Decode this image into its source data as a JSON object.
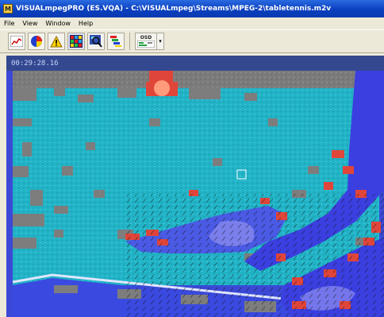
{
  "window": {
    "app_icon": "M",
    "title": "VISUALmpegPRO (ES.VQA) - C:\\VISUALmpeg\\Streams\\MPEG-2\\tabletennis.m2v"
  },
  "menu": {
    "items": [
      "File",
      "View",
      "Window",
      "Help"
    ]
  },
  "toolbar": {
    "buttons": [
      {
        "name": "line-graph-icon"
      },
      {
        "name": "pie-chart-icon"
      },
      {
        "name": "warning-icon"
      },
      {
        "name": "macroblock-grid-icon"
      },
      {
        "name": "magnifier-icon"
      },
      {
        "name": "stack-icon"
      }
    ],
    "osd_label": "OSD"
  },
  "viewer": {
    "timecode": "00:29:28.16"
  }
}
